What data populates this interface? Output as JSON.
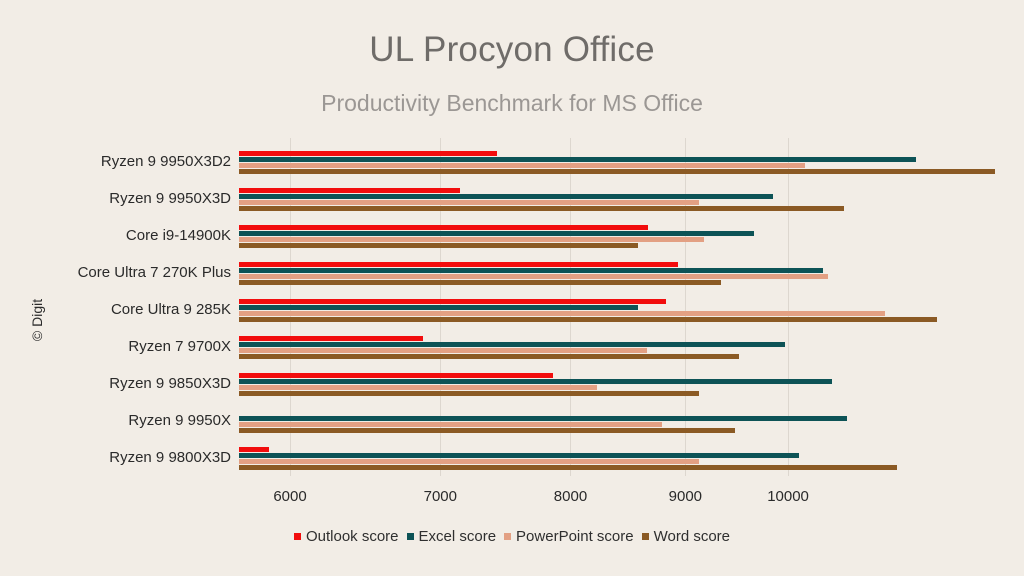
{
  "header": {
    "title": "UL Procyon Office",
    "subtitle": "Productivity Benchmark for MS Office"
  },
  "credit": "© Digit",
  "colors": {
    "background": "#f2ede6",
    "outlook": "#f20d0d",
    "excel": "#0d5356",
    "powerpoint": "#e3a083",
    "word": "#8b5a24"
  },
  "chart_data": {
    "type": "bar",
    "orientation": "horizontal",
    "title": "UL Procyon Office",
    "subtitle": "Productivity Benchmark for MS Office",
    "xlabel": "",
    "ylabel": "",
    "x_scale": "log",
    "xlim": [
      5700,
      12500
    ],
    "x_ticks": [
      6000,
      7000,
      8000,
      9000,
      10000
    ],
    "grid": true,
    "legend_position": "bottom",
    "categories": [
      "Ryzen 9 9950X3D2",
      "Ryzen 9 9950X3D",
      "Core i9-14900K",
      "Core Ultra 7 270K Plus",
      "Core Ultra 9 285K",
      "Ryzen 7 9700X",
      "Ryzen 9 9850X3D",
      "Ryzen 9 9950X",
      "Ryzen 9 9800X3D"
    ],
    "series": [
      {
        "name": "Outlook score",
        "color": "#f20d0d",
        "values": [
          7420,
          7140,
          8660,
          8930,
          8820,
          6880,
          7860,
          null,
          5870
        ]
      },
      {
        "name": "Excel score",
        "color": "#0d5356",
        "values": [
          11400,
          9850,
          9660,
          10370,
          8570,
          9970,
          10460,
          10620,
          10110
        ]
      },
      {
        "name": "PowerPoint score",
        "color": "#e3a083",
        "values": [
          10180,
          9130,
          9170,
          10420,
          11040,
          8650,
          8220,
          8790,
          9130
        ]
      },
      {
        "name": "Word score",
        "color": "#8b5a24",
        "values": [
          12370,
          10590,
          8570,
          9340,
          11650,
          9510,
          9130,
          9470,
          11180
        ]
      }
    ]
  },
  "legend": [
    {
      "label": "Outlook score",
      "color": "#f20d0d"
    },
    {
      "label": "Excel score",
      "color": "#0d5356"
    },
    {
      "label": "PowerPoint score",
      "color": "#e3a083"
    },
    {
      "label": "Word score",
      "color": "#8b5a24"
    }
  ]
}
